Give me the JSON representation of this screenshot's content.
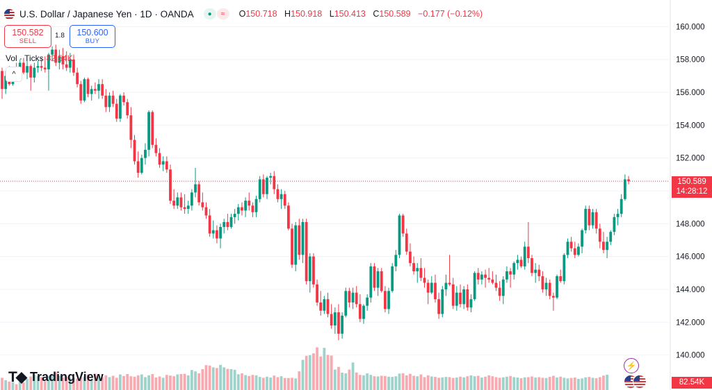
{
  "header": {
    "symbol": "U.S. Dollar / Japanese Yen · 1D · OANDA",
    "ohlc": [
      {
        "key": "O",
        "value": "150.718"
      },
      {
        "key": "H",
        "value": "150.918"
      },
      {
        "key": "L",
        "value": "150.413"
      },
      {
        "key": "C",
        "value": "150.589"
      }
    ],
    "change": "−0.177 (−0.12%)"
  },
  "trade": {
    "sell_price": "150.582",
    "sell_label": "SELL",
    "spread": "1.8",
    "buy_price": "150.600",
    "buy_label": "BUY"
  },
  "volume": {
    "label": "Vol · Ticks",
    "value": "82.54K",
    "axis_label": "82.54K"
  },
  "price_label": {
    "price": "150.589",
    "countdown": "14:28:12"
  },
  "brand": "TradingView",
  "colors": {
    "up": "#089981",
    "down": "#f23645",
    "vol_up": "#9ed3cb",
    "vol_down": "#f8aab0",
    "grid": "#f0f3fa"
  },
  "chart_data": {
    "type": "candlestick",
    "ylim": [
      138.8,
      161.2
    ],
    "yticks": [
      140,
      142,
      144,
      146,
      148,
      150,
      152,
      154,
      156,
      158,
      160
    ],
    "ytick_labels": [
      "140.000",
      "142.000",
      "144.000",
      "146.000",
      "148.000",
      "150.000",
      "152.000",
      "154.000",
      "156.000",
      "158.000",
      "160.000"
    ],
    "last_price": 150.589,
    "candles": [
      [
        157.3,
        157.5,
        155.6,
        156.2
      ],
      [
        156.2,
        157.3,
        155.9,
        157.0
      ],
      [
        157.0,
        157.6,
        156.4,
        156.5
      ],
      [
        156.5,
        157.5,
        156.4,
        157.4
      ],
      [
        157.4,
        157.8,
        157.0,
        157.3
      ],
      [
        157.3,
        158.0,
        157.0,
        157.8
      ],
      [
        157.8,
        158.1,
        157.1,
        157.2
      ],
      [
        157.2,
        157.9,
        156.8,
        157.6
      ],
      [
        157.6,
        157.7,
        156.1,
        156.9
      ],
      [
        156.9,
        157.8,
        156.6,
        157.5
      ],
      [
        157.5,
        157.9,
        157.2,
        157.6
      ],
      [
        157.6,
        158.1,
        157.3,
        157.5
      ],
      [
        157.5,
        158.2,
        157.2,
        157.4
      ],
      [
        157.4,
        158.4,
        156.1,
        158.3
      ],
      [
        158.3,
        158.8,
        157.9,
        158.6
      ],
      [
        158.6,
        158.9,
        157.6,
        157.8
      ],
      [
        157.8,
        158.6,
        157.4,
        158.2
      ],
      [
        158.2,
        158.7,
        157.4,
        157.7
      ],
      [
        157.7,
        158.5,
        157.3,
        157.5
      ],
      [
        157.5,
        158.4,
        157.2,
        158.0
      ],
      [
        158.0,
        158.3,
        157.0,
        157.2
      ],
      [
        157.2,
        157.5,
        156.3,
        156.5
      ],
      [
        156.5,
        156.7,
        155.3,
        155.5
      ],
      [
        155.5,
        156.9,
        155.4,
        156.8
      ],
      [
        156.8,
        156.9,
        155.7,
        155.9
      ],
      [
        155.9,
        156.4,
        155.5,
        156.2
      ],
      [
        156.2,
        156.6,
        155.9,
        156.1
      ],
      [
        156.1,
        156.8,
        155.6,
        156.5
      ],
      [
        156.5,
        156.8,
        155.6,
        155.8
      ],
      [
        155.8,
        156.2,
        154.8,
        155.1
      ],
      [
        155.1,
        156.0,
        154.8,
        155.8
      ],
      [
        155.8,
        156.1,
        155.1,
        155.3
      ],
      [
        155.3,
        155.6,
        154.2,
        154.4
      ],
      [
        154.4,
        155.9,
        154.2,
        155.8
      ],
      [
        155.8,
        156.0,
        155.2,
        155.4
      ],
      [
        155.4,
        155.6,
        154.4,
        154.6
      ],
      [
        154.6,
        155.1,
        152.6,
        153.1
      ],
      [
        153.1,
        153.4,
        151.6,
        151.8
      ],
      [
        151.8,
        152.4,
        150.8,
        151.1
      ],
      [
        151.1,
        152.2,
        151.0,
        152.0
      ],
      [
        152.0,
        152.9,
        151.6,
        152.5
      ],
      [
        152.5,
        154.9,
        152.1,
        154.8
      ],
      [
        154.8,
        154.9,
        152.6,
        152.8
      ],
      [
        152.8,
        153.2,
        152.1,
        152.3
      ],
      [
        152.3,
        152.6,
        151.4,
        151.6
      ],
      [
        151.6,
        152.1,
        151.2,
        151.8
      ],
      [
        151.8,
        152.1,
        151.1,
        151.3
      ],
      [
        151.3,
        151.6,
        149.2,
        149.4
      ],
      [
        149.4,
        150.1,
        148.9,
        149.1
      ],
      [
        149.1,
        149.9,
        148.9,
        149.6
      ],
      [
        149.6,
        149.9,
        148.8,
        149.0
      ],
      [
        149.0,
        149.8,
        148.6,
        148.9
      ],
      [
        148.9,
        149.4,
        148.6,
        149.1
      ],
      [
        149.1,
        150.1,
        148.8,
        149.9
      ],
      [
        149.9,
        151.4,
        149.6,
        150.4
      ],
      [
        150.4,
        150.6,
        149.1,
        149.3
      ],
      [
        149.3,
        149.9,
        148.8,
        149.0
      ],
      [
        149.0,
        149.3,
        148.3,
        148.5
      ],
      [
        148.5,
        148.9,
        147.2,
        147.4
      ],
      [
        147.4,
        148.2,
        147.1,
        147.6
      ],
      [
        147.6,
        147.9,
        146.8,
        147.1
      ],
      [
        147.1,
        148.0,
        146.5,
        147.8
      ],
      [
        147.8,
        148.3,
        147.4,
        148.1
      ],
      [
        148.1,
        148.6,
        147.6,
        147.8
      ],
      [
        147.8,
        148.6,
        147.7,
        148.4
      ],
      [
        148.4,
        148.9,
        148.0,
        148.6
      ],
      [
        148.6,
        149.2,
        148.2,
        149.0
      ],
      [
        149.0,
        149.3,
        148.5,
        148.8
      ],
      [
        148.8,
        149.6,
        148.4,
        149.4
      ],
      [
        149.4,
        149.9,
        148.8,
        149.1
      ],
      [
        149.1,
        149.3,
        148.4,
        148.7
      ],
      [
        148.7,
        149.7,
        148.4,
        149.5
      ],
      [
        149.5,
        150.9,
        149.3,
        150.7
      ],
      [
        150.7,
        151.0,
        149.6,
        149.8
      ],
      [
        149.8,
        150.9,
        149.5,
        150.8
      ],
      [
        150.8,
        151.1,
        150.4,
        150.9
      ],
      [
        150.9,
        151.2,
        149.8,
        150.1
      ],
      [
        150.1,
        150.4,
        149.3,
        149.5
      ],
      [
        149.5,
        150.1,
        148.9,
        149.8
      ],
      [
        149.8,
        150.0,
        148.9,
        149.1
      ],
      [
        149.1,
        149.3,
        147.6,
        147.7
      ],
      [
        147.7,
        148.0,
        145.3,
        145.5
      ],
      [
        145.5,
        148.1,
        145.1,
        147.9
      ],
      [
        147.9,
        148.3,
        145.8,
        146.1
      ],
      [
        146.1,
        148.3,
        145.6,
        148.1
      ],
      [
        148.1,
        148.3,
        144.3,
        144.5
      ],
      [
        144.5,
        146.2,
        143.8,
        146.0
      ],
      [
        146.0,
        146.2,
        144.1,
        144.3
      ],
      [
        144.3,
        144.6,
        143.0,
        143.2
      ],
      [
        143.2,
        143.9,
        142.4,
        142.7
      ],
      [
        142.7,
        143.6,
        142.5,
        143.4
      ],
      [
        143.4,
        143.8,
        142.3,
        142.5
      ],
      [
        142.5,
        143.1,
        141.6,
        141.8
      ],
      [
        141.8,
        142.9,
        141.3,
        142.6
      ],
      [
        142.6,
        143.1,
        140.9,
        141.3
      ],
      [
        141.3,
        142.6,
        141.0,
        142.4
      ],
      [
        142.4,
        144.1,
        142.3,
        143.9
      ],
      [
        143.9,
        144.1,
        142.9,
        143.2
      ],
      [
        143.2,
        144.1,
        142.8,
        143.8
      ],
      [
        143.8,
        144.2,
        142.9,
        143.1
      ],
      [
        143.1,
        143.7,
        142.0,
        142.2
      ],
      [
        142.2,
        143.1,
        141.9,
        143.0
      ],
      [
        143.0,
        143.7,
        142.7,
        143.5
      ],
      [
        143.5,
        145.6,
        143.2,
        145.4
      ],
      [
        145.4,
        145.6,
        143.9,
        144.1
      ],
      [
        144.1,
        145.3,
        143.6,
        145.1
      ],
      [
        145.1,
        145.3,
        143.8,
        143.9
      ],
      [
        143.9,
        144.2,
        142.6,
        142.8
      ],
      [
        142.8,
        144.1,
        142.5,
        143.9
      ],
      [
        143.9,
        145.6,
        143.8,
        145.4
      ],
      [
        145.4,
        146.4,
        145.1,
        146.1
      ],
      [
        146.1,
        148.6,
        145.9,
        148.5
      ],
      [
        148.5,
        148.6,
        147.2,
        147.4
      ],
      [
        147.4,
        147.7,
        146.1,
        146.3
      ],
      [
        146.3,
        146.8,
        145.4,
        145.6
      ],
      [
        145.6,
        146.0,
        144.9,
        145.1
      ],
      [
        145.1,
        145.6,
        144.4,
        145.3
      ],
      [
        145.3,
        145.9,
        144.5,
        144.7
      ],
      [
        144.7,
        145.3,
        144.1,
        144.4
      ],
      [
        144.4,
        144.6,
        143.1,
        143.8
      ],
      [
        143.8,
        144.8,
        143.7,
        144.4
      ],
      [
        144.4,
        144.9,
        143.2,
        143.4
      ],
      [
        143.4,
        143.8,
        142.2,
        142.5
      ],
      [
        142.5,
        144.2,
        142.3,
        144.0
      ],
      [
        144.0,
        144.9,
        143.6,
        144.4
      ],
      [
        144.4,
        146.1,
        144.2,
        144.3
      ],
      [
        144.3,
        144.7,
        142.8,
        143.0
      ],
      [
        143.0,
        144.2,
        142.7,
        143.8
      ],
      [
        143.8,
        144.3,
        142.9,
        143.1
      ],
      [
        143.1,
        144.2,
        142.8,
        144.0
      ],
      [
        144.0,
        144.3,
        142.7,
        142.9
      ],
      [
        142.9,
        143.7,
        142.6,
        143.4
      ],
      [
        143.4,
        145.1,
        143.3,
        145.0
      ],
      [
        145.0,
        145.3,
        144.3,
        144.6
      ],
      [
        144.6,
        145.1,
        144.3,
        144.9
      ],
      [
        144.9,
        145.2,
        144.1,
        144.7
      ],
      [
        144.7,
        145.3,
        144.4,
        144.6
      ],
      [
        144.6,
        145.1,
        144.3,
        144.4
      ],
      [
        144.4,
        144.9,
        143.9,
        144.1
      ],
      [
        144.1,
        144.5,
        143.3,
        143.6
      ],
      [
        143.6,
        144.8,
        143.1,
        144.6
      ],
      [
        144.6,
        145.4,
        144.4,
        145.1
      ],
      [
        145.1,
        145.3,
        144.1,
        144.9
      ],
      [
        144.9,
        145.7,
        144.6,
        145.6
      ],
      [
        145.6,
        146.1,
        145.2,
        145.8
      ],
      [
        145.8,
        146.0,
        145.3,
        145.4
      ],
      [
        145.4,
        146.9,
        145.2,
        146.6
      ],
      [
        146.6,
        148.1,
        145.6,
        145.9
      ],
      [
        145.9,
        146.1,
        144.8,
        145.0
      ],
      [
        145.0,
        145.6,
        144.4,
        145.2
      ],
      [
        145.2,
        145.5,
        144.5,
        144.8
      ],
      [
        144.8,
        145.1,
        143.8,
        144.0
      ],
      [
        144.0,
        144.7,
        143.6,
        144.4
      ],
      [
        144.4,
        144.6,
        143.4,
        143.6
      ],
      [
        143.6,
        143.8,
        142.7,
        143.5
      ],
      [
        143.5,
        144.9,
        143.4,
        144.8
      ],
      [
        144.8,
        145.2,
        144.4,
        144.5
      ],
      [
        144.5,
        146.2,
        144.3,
        146.1
      ],
      [
        146.1,
        147.1,
        145.9,
        146.9
      ],
      [
        146.9,
        147.2,
        146.3,
        146.5
      ],
      [
        146.5,
        146.9,
        145.9,
        146.1
      ],
      [
        146.1,
        146.8,
        146.0,
        146.6
      ],
      [
        146.6,
        147.7,
        146.2,
        147.6
      ],
      [
        147.6,
        149.1,
        147.4,
        148.9
      ],
      [
        148.9,
        149.1,
        147.6,
        147.9
      ],
      [
        147.9,
        148.9,
        147.7,
        148.7
      ],
      [
        148.7,
        148.9,
        147.4,
        147.7
      ],
      [
        147.7,
        148.0,
        146.5,
        146.9
      ],
      [
        146.9,
        147.5,
        146.2,
        146.4
      ],
      [
        146.4,
        147.2,
        145.9,
        146.9
      ],
      [
        146.9,
        147.6,
        146.7,
        147.5
      ],
      [
        147.5,
        148.6,
        147.3,
        148.4
      ],
      [
        148.4,
        148.9,
        147.9,
        148.6
      ],
      [
        148.6,
        149.8,
        148.4,
        149.5
      ],
      [
        149.5,
        151.0,
        149.4,
        150.7
      ],
      [
        150.7,
        150.9,
        150.4,
        150.589
      ]
    ],
    "volumes": [
      0.55,
      0.44,
      0.38,
      0.36,
      0.26,
      0.38,
      0.34,
      0.5,
      0.61,
      0.68,
      0.62,
      0.58,
      0.4,
      0.63,
      0.7,
      0.8,
      0.64,
      0.57,
      0.6,
      0.55,
      0.56,
      0.52,
      0.58,
      0.6,
      0.7,
      0.48,
      0.74,
      0.62,
      0.57,
      0.66,
      0.58,
      0.64,
      0.55,
      0.7,
      0.63,
      0.72,
      0.62,
      0.6,
      0.66,
      0.7,
      0.58,
      0.66,
      0.72,
      0.56,
      0.61,
      0.55,
      0.68,
      0.65,
      0.62,
      0.7,
      0.72,
      0.73,
      0.66,
      0.9,
      0.84,
      0.75,
      0.94,
      1.12,
      1.1,
      1.02,
      0.99,
      1.13,
      1.02,
      0.95,
      0.94,
      0.91,
      0.71,
      0.75,
      0.67,
      0.63,
      0.68,
      0.66,
      0.59,
      0.55,
      0.6,
      0.56,
      0.65,
      0.58,
      0.62,
      0.54,
      0.54,
      0.55,
      0.52,
      0.84,
      1.36,
      1.54,
      1.57,
      1.65,
      1.92,
      1.51,
      1.9,
      1.58,
      1.55,
      0.92,
      1.04,
      0.78,
      0.75,
      0.92,
      1.24,
      0.79,
      0.68,
      0.66,
      0.75,
      0.68,
      0.62,
      0.61,
      0.64,
      0.63,
      0.6,
      0.59,
      0.62,
      0.74,
      0.75,
      0.66,
      0.73,
      0.64,
      0.62,
      0.7,
      0.58,
      0.66,
      0.61,
      0.59,
      0.55,
      0.57,
      0.59,
      0.58,
      0.54,
      0.56,
      0.6,
      0.57,
      0.62,
      0.66,
      0.62,
      0.64,
      0.56,
      0.6,
      0.66,
      0.62,
      0.58,
      0.55,
      0.57,
      0.6,
      0.63,
      0.58,
      0.56,
      0.53,
      0.57,
      0.58,
      0.61,
      0.56,
      0.58,
      0.55,
      0.54,
      0.59,
      0.64,
      0.56,
      0.6,
      0.55,
      0.52,
      0.54,
      0.56,
      0.5,
      0.52,
      0.57,
      0.59,
      0.55,
      0.53,
      0.58,
      0.65,
      0.69
    ]
  }
}
